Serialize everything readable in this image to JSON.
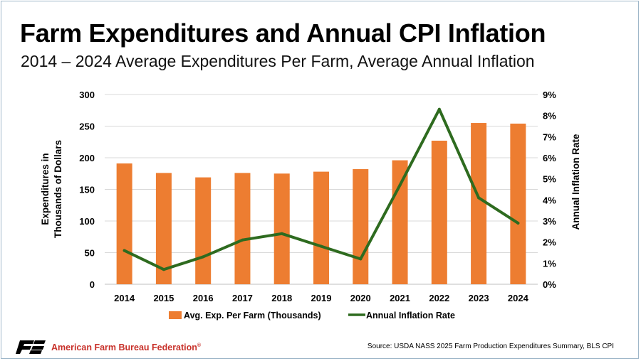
{
  "header": {
    "title": "Farm Expenditures and Annual CPI Inflation",
    "subtitle": "2014 – 2024 Average Expenditures Per Farm, Average Annual Inflation"
  },
  "footer": {
    "org_name": "American Farm Bureau Federation",
    "org_mark": "®",
    "source": "Source: USDA NASS 2025 Farm Production Expenditures Summary, BLS CPI"
  },
  "colors": {
    "bar": "#ED7D31",
    "line": "#2E6B1F",
    "brand_red": "#C8312A",
    "grid": "#D9D9D9"
  },
  "chart_data": {
    "type": "bar",
    "categories": [
      "2014",
      "2015",
      "2016",
      "2017",
      "2018",
      "2019",
      "2020",
      "2021",
      "2022",
      "2023",
      "2024"
    ],
    "series": [
      {
        "name": "Avg. Exp. Per Farm (Thousands)",
        "type": "bar",
        "axis": "left",
        "values": [
          191,
          176,
          169,
          176,
          175,
          178,
          182,
          196,
          227,
          255,
          254
        ]
      },
      {
        "name": "Annual Inflation Rate",
        "type": "line",
        "axis": "right",
        "values": [
          1.6,
          0.7,
          1.3,
          2.1,
          2.4,
          1.8,
          1.2,
          4.7,
          8.3,
          4.1,
          2.9
        ]
      }
    ],
    "ylabel": "Expenditures in Thousands of Dollars",
    "ylabel_lines": [
      "Expenditures in",
      "Thousands of Dollars"
    ],
    "y2label": "Annual Inflation Rate",
    "ylim": [
      0,
      300
    ],
    "y2lim": [
      0,
      9
    ],
    "yticks": [
      "0",
      "50",
      "100",
      "150",
      "200",
      "250",
      "300"
    ],
    "y2ticks": [
      "0%",
      "1%",
      "2%",
      "3%",
      "4%",
      "5%",
      "6%",
      "7%",
      "8%",
      "9%"
    ],
    "grid": true,
    "legend": "bottom"
  }
}
